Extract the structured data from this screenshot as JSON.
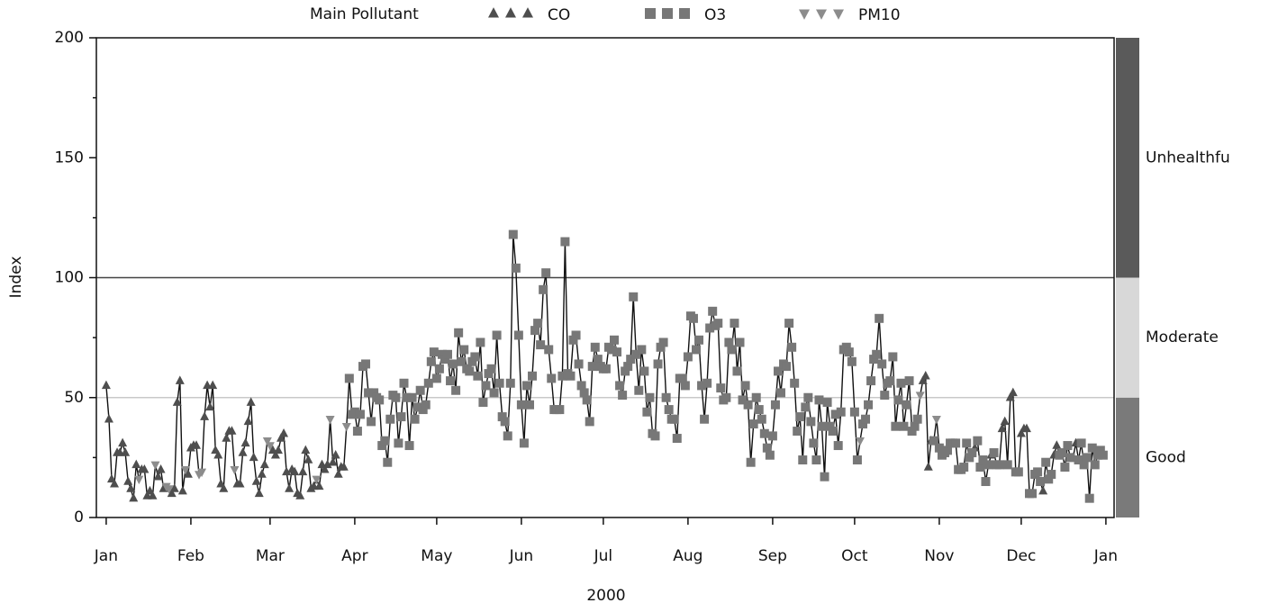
{
  "chart_data": {
    "type": "scatter-line",
    "legend_title": "Main Pollutant",
    "x_label": "2000",
    "y_label": "Index",
    "xlim": [
      -3.6,
      369
    ],
    "ylim": [
      0,
      200
    ],
    "xticks": [
      {
        "value": 0,
        "label": "Jan"
      },
      {
        "value": 31,
        "label": "Feb"
      },
      {
        "value": 60,
        "label": "Mar"
      },
      {
        "value": 91,
        "label": "Apr"
      },
      {
        "value": 121,
        "label": "May"
      },
      {
        "value": 152,
        "label": "Jun"
      },
      {
        "value": 182,
        "label": "Jul"
      },
      {
        "value": 213,
        "label": "Aug"
      },
      {
        "value": 244,
        "label": "Sep"
      },
      {
        "value": 274,
        "label": "Oct"
      },
      {
        "value": 305,
        "label": "Nov"
      },
      {
        "value": 335,
        "label": "Dec"
      },
      {
        "value": 366,
        "label": "Jan"
      }
    ],
    "yticks": [
      0,
      50,
      100,
      150,
      200
    ],
    "yminorticks": [
      25,
      75,
      125,
      175
    ],
    "line_color": "#111111",
    "reference_lines": [
      {
        "value": 50,
        "color": "#c8c8c8"
      },
      {
        "value": 100,
        "color": "#444444"
      }
    ],
    "bands": [
      {
        "label": "Good",
        "from": 0,
        "to": 50,
        "color": "#7a7a7a"
      },
      {
        "label": "Moderate",
        "from": 50,
        "to": 100,
        "color": "#d8d8d8"
      },
      {
        "label": "Unhealthfu",
        "from": 100,
        "to": 200,
        "color": "#5a5a5a"
      }
    ],
    "series": [
      {
        "name": "CO",
        "color": "#4e4e4e",
        "marker": "triangle",
        "x": [
          0,
          1,
          2,
          3,
          4,
          5,
          6,
          7,
          8,
          9,
          10,
          11,
          13,
          14,
          15,
          16,
          17,
          19,
          20,
          21,
          24,
          25,
          26,
          27,
          28,
          30,
          31,
          32,
          33,
          36,
          37,
          38,
          39,
          40,
          41,
          42,
          43,
          44,
          45,
          46,
          48,
          49,
          50,
          51,
          52,
          53,
          54,
          55,
          56,
          57,
          58,
          61,
          62,
          63,
          64,
          65,
          66,
          67,
          68,
          69,
          70,
          71,
          72,
          73,
          74,
          75,
          76,
          78,
          79,
          80,
          81,
          83,
          84,
          85,
          86,
          87,
          299,
          300,
          301,
          302,
          318,
          324,
          328,
          329,
          331,
          332,
          335,
          336,
          337,
          343,
          347,
          348,
          354,
          355
        ],
        "values": [
          55,
          41,
          16,
          14,
          27,
          27,
          31,
          27,
          15,
          12,
          8,
          22,
          20,
          20,
          9,
          11,
          9,
          17,
          20,
          12,
          10,
          12,
          48,
          57,
          11,
          18,
          29,
          30,
          30,
          42,
          55,
          46,
          55,
          28,
          26,
          14,
          12,
          33,
          36,
          36,
          14,
          14,
          27,
          31,
          40,
          48,
          25,
          15,
          10,
          18,
          22,
          28,
          26,
          28,
          33,
          35,
          19,
          12,
          20,
          19,
          10,
          9,
          19,
          28,
          24,
          12,
          13,
          13,
          22,
          20,
          22,
          23,
          26,
          18,
          21,
          21,
          57,
          59,
          21,
          32,
          29,
          26,
          37,
          40,
          50,
          52,
          35,
          37,
          37,
          11,
          26,
          30,
          25,
          31
        ]
      },
      {
        "name": "O3",
        "color": "#777777",
        "marker": "square",
        "x": [
          89,
          90,
          91,
          92,
          93,
          94,
          95,
          96,
          97,
          98,
          99,
          100,
          101,
          102,
          103,
          104,
          105,
          106,
          107,
          108,
          109,
          110,
          111,
          112,
          113,
          114,
          115,
          116,
          117,
          118,
          119,
          120,
          121,
          122,
          123,
          124,
          125,
          126,
          127,
          128,
          129,
          130,
          131,
          132,
          133,
          134,
          135,
          136,
          137,
          138,
          139,
          140,
          141,
          142,
          143,
          144,
          145,
          146,
          147,
          148,
          149,
          150,
          151,
          152,
          153,
          154,
          155,
          156,
          157,
          158,
          159,
          160,
          161,
          162,
          163,
          164,
          165,
          166,
          167,
          168,
          169,
          170,
          171,
          172,
          173,
          174,
          175,
          176,
          177,
          178,
          179,
          180,
          181,
          182,
          183,
          184,
          185,
          186,
          187,
          188,
          189,
          190,
          191,
          192,
          193,
          194,
          195,
          196,
          197,
          198,
          199,
          200,
          201,
          202,
          203,
          204,
          205,
          206,
          207,
          208,
          209,
          210,
          211,
          212,
          213,
          214,
          215,
          216,
          217,
          218,
          219,
          220,
          221,
          222,
          223,
          224,
          225,
          226,
          227,
          228,
          229,
          230,
          231,
          232,
          233,
          234,
          235,
          236,
          237,
          238,
          239,
          240,
          241,
          242,
          243,
          244,
          245,
          246,
          247,
          248,
          249,
          250,
          251,
          252,
          253,
          254,
          255,
          256,
          257,
          258,
          259,
          260,
          261,
          262,
          263,
          264,
          265,
          266,
          267,
          268,
          269,
          270,
          271,
          272,
          273,
          274,
          275,
          277,
          278,
          279,
          280,
          281,
          282,
          283,
          284,
          285,
          286,
          287,
          288,
          289,
          290,
          291,
          292,
          293,
          294,
          295,
          296,
          297,
          303,
          305,
          306,
          307,
          308,
          309,
          310,
          311,
          312,
          313,
          314,
          315,
          316,
          317,
          319,
          320,
          321,
          322,
          323,
          325,
          326,
          327,
          330,
          333,
          334,
          338,
          339,
          340,
          341,
          342,
          344,
          345,
          346,
          349,
          350,
          351,
          352,
          353,
          356,
          357,
          358,
          359,
          360,
          361,
          362,
          363,
          364,
          365
        ],
        "values": [
          58,
          43,
          44,
          36,
          43,
          63,
          64,
          52,
          40,
          52,
          50,
          49,
          30,
          32,
          23,
          41,
          51,
          50,
          31,
          42,
          56,
          50,
          30,
          50,
          41,
          46,
          53,
          45,
          47,
          56,
          65,
          69,
          58,
          62,
          68,
          66,
          68,
          57,
          64,
          53,
          77,
          65,
          70,
          62,
          61,
          65,
          67,
          59,
          73,
          48,
          55,
          60,
          62,
          52,
          76,
          56,
          42,
          40,
          34,
          56,
          118,
          104,
          76,
          47,
          31,
          55,
          47,
          59,
          78,
          81,
          72,
          95,
          102,
          70,
          58,
          45,
          45,
          45,
          59,
          115,
          60,
          59,
          74,
          76,
          64,
          55,
          52,
          49,
          40,
          63,
          71,
          66,
          63,
          62,
          62,
          71,
          70,
          74,
          69,
          55,
          51,
          61,
          63,
          66,
          92,
          68,
          53,
          70,
          61,
          44,
          50,
          35,
          34,
          64,
          71,
          73,
          50,
          45,
          41,
          41,
          33,
          58,
          58,
          55,
          67,
          84,
          83,
          70,
          74,
          55,
          41,
          56,
          79,
          86,
          80,
          81,
          54,
          49,
          50,
          73,
          70,
          81,
          61,
          73,
          49,
          55,
          47,
          23,
          39,
          50,
          45,
          41,
          35,
          29,
          26,
          34,
          47,
          61,
          52,
          64,
          63,
          81,
          71,
          56,
          36,
          42,
          24,
          46,
          50,
          40,
          31,
          24,
          49,
          38,
          17,
          48,
          38,
          36,
          43,
          30,
          44,
          70,
          71,
          69,
          65,
          44,
          24,
          39,
          41,
          47,
          57,
          66,
          68,
          83,
          64,
          51,
          56,
          57,
          67,
          38,
          49,
          56,
          38,
          47,
          57,
          36,
          38,
          41,
          32,
          29,
          26,
          27,
          28,
          31,
          31,
          31,
          20,
          20,
          21,
          31,
          25,
          27,
          32,
          21,
          24,
          15,
          22,
          27,
          22,
          22,
          22,
          19,
          19,
          10,
          10,
          18,
          19,
          15,
          23,
          16,
          18,
          26,
          27,
          21,
          30,
          25,
          24,
          31,
          22,
          25,
          8,
          29,
          22,
          26,
          28,
          26
        ]
      },
      {
        "name": "PM10",
        "color": "#8c8c8c",
        "marker": "triangle-down",
        "x": [
          12,
          18,
          22,
          23,
          29,
          34,
          35,
          47,
          59,
          60,
          77,
          82,
          88,
          276,
          298,
          304
        ],
        "values": [
          16,
          22,
          13,
          12,
          20,
          18,
          19,
          20,
          32,
          30,
          16,
          41,
          38,
          32,
          51,
          41
        ]
      }
    ]
  }
}
